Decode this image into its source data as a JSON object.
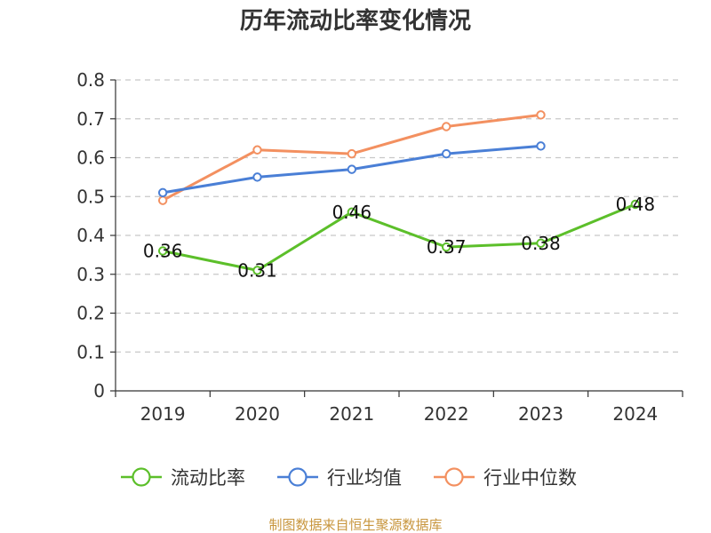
{
  "chart_data": {
    "type": "line",
    "title": "历年流动比率变化情况",
    "xlabel": "",
    "ylabel": "",
    "categories": [
      "2019",
      "2020",
      "2021",
      "2022",
      "2023",
      "2024"
    ],
    "ylim": [
      0,
      0.8
    ],
    "y_ticks": [
      "0",
      "0.1",
      "0.2",
      "0.3",
      "0.4",
      "0.5",
      "0.6",
      "0.7",
      "0.8"
    ],
    "grid": true,
    "legend_position": "bottom",
    "series": [
      {
        "name": "流动比率",
        "values": [
          0.36,
          0.31,
          0.46,
          0.37,
          0.38,
          0.48
        ],
        "labels": [
          "0.36",
          "0.31",
          "0.46",
          "0.37",
          "0.38",
          "0.48"
        ],
        "color": "#5cbf2a"
      },
      {
        "name": "行业均值",
        "values": [
          0.51,
          0.55,
          0.57,
          0.61,
          0.63,
          null
        ],
        "color": "#4a7fd6"
      },
      {
        "name": "行业中位数",
        "values": [
          0.49,
          0.62,
          0.61,
          0.68,
          0.71,
          null
        ],
        "color": "#f39060"
      }
    ]
  },
  "source_text": "制图数据来自恒生聚源数据库",
  "source_color": "#c8963e"
}
